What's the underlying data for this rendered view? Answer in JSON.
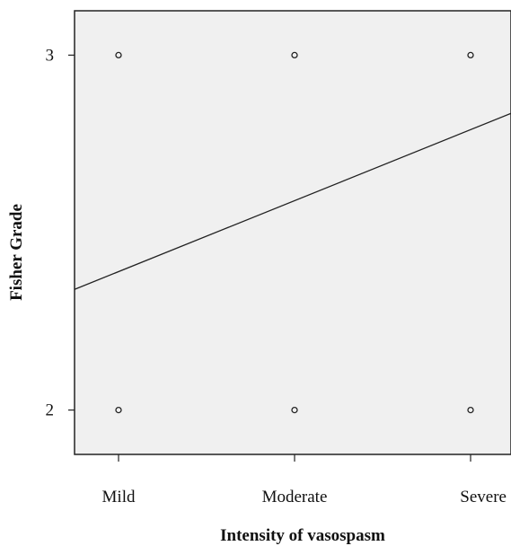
{
  "chart_data": {
    "type": "scatter",
    "xlabel": "Intensity of vasospasm",
    "ylabel": "Fisher Grade",
    "x_categories": [
      "Mild",
      "Moderate",
      "Severe"
    ],
    "y_ticks": [
      2,
      3
    ],
    "ylim": [
      1.875,
      3.125
    ],
    "grid": false,
    "points": [
      {
        "x": "Mild",
        "y": 3
      },
      {
        "x": "Moderate",
        "y": 3
      },
      {
        "x": "Severe",
        "y": 3
      },
      {
        "x": "Mild",
        "y": 2
      },
      {
        "x": "Moderate",
        "y": 2
      },
      {
        "x": "Severe",
        "y": 2
      }
    ],
    "fit_line": {
      "type": "linear",
      "y_at_mild": 2.39,
      "y_at_severe": 2.79
    },
    "colors": {
      "plot_background": "#f0f0f0",
      "marker": "#222222",
      "line": "#222222",
      "frame": "#222222"
    }
  }
}
